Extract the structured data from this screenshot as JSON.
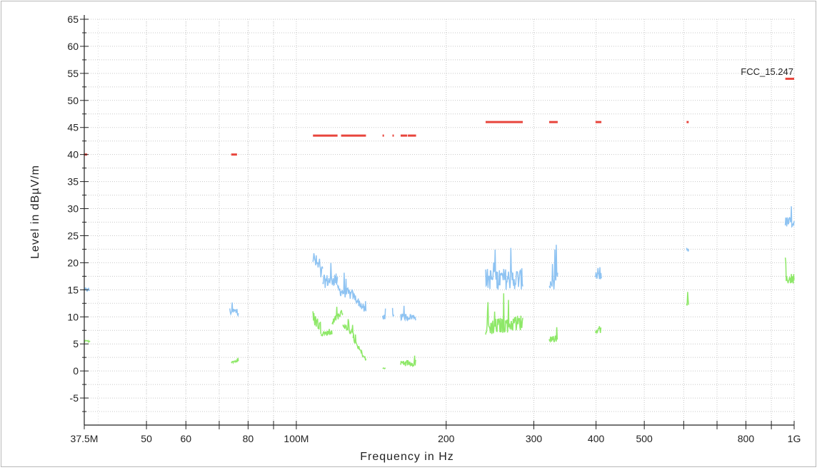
{
  "chart_data": {
    "type": "line",
    "xlabel": "Frequency in Hz",
    "ylabel": "Level in dBµV/m",
    "x_scale": "log",
    "xlim": [
      37500000,
      1000000000
    ],
    "ylim": [
      -10,
      65
    ],
    "grid": true,
    "x_ticks": [
      {
        "value": 37500000,
        "label": "37.5M"
      },
      {
        "value": 50000000,
        "label": "50"
      },
      {
        "value": 60000000,
        "label": "60"
      },
      {
        "value": 70000000,
        "label": ""
      },
      {
        "value": 80000000,
        "label": "80"
      },
      {
        "value": 90000000,
        "label": ""
      },
      {
        "value": 100000000,
        "label": "100M"
      },
      {
        "value": 200000000,
        "label": "200"
      },
      {
        "value": 300000000,
        "label": "300"
      },
      {
        "value": 400000000,
        "label": "400"
      },
      {
        "value": 500000000,
        "label": "500"
      },
      {
        "value": 600000000,
        "label": ""
      },
      {
        "value": 700000000,
        "label": ""
      },
      {
        "value": 800000000,
        "label": "800"
      },
      {
        "value": 900000000,
        "label": ""
      },
      {
        "value": 1000000000,
        "label": "1G"
      }
    ],
    "y_ticks": [
      -5,
      0,
      5,
      10,
      15,
      20,
      25,
      30,
      35,
      40,
      45,
      50,
      55,
      60,
      65
    ],
    "limit_label": "FCC_15.247",
    "series": [
      {
        "color": "#e8453c",
        "style": "segments",
        "segments": [
          {
            "x": [
              37500000,
              38000000
            ],
            "y": 40
          },
          {
            "x": [
              74000000,
              76000000
            ],
            "y": 40
          },
          {
            "x": [
              108000000,
              121000000
            ],
            "y": 43.5
          },
          {
            "x": [
              123000000,
              138000000
            ],
            "y": 43.5
          },
          {
            "x": [
              149000000,
              150000000
            ],
            "y": 43.5
          },
          {
            "x": [
              156000000,
              157000000
            ],
            "y": 43.5
          },
          {
            "x": [
              162000000,
              167000000
            ],
            "y": 43.5
          },
          {
            "x": [
              167500000,
              174000000
            ],
            "y": 43.5
          },
          {
            "x": [
              240000000,
              285000000
            ],
            "y": 46
          },
          {
            "x": [
              322000000,
              335000000
            ],
            "y": 46
          },
          {
            "x": [
              399000000,
              410000000
            ],
            "y": 46
          },
          {
            "x": [
              608000000,
              614000000
            ],
            "y": 46
          },
          {
            "x": [
              960000000,
              1000000000
            ],
            "y": 54
          }
        ]
      },
      {
        "color": "#8ec3f2",
        "style": "noise",
        "segments": [
          {
            "x": [
              37500000,
              38500000
            ],
            "y": [
              15,
              15
            ],
            "noise": 0.8
          },
          {
            "x": [
              73500000,
              76500000
            ],
            "y": [
              11,
              11
            ],
            "noise": 1.5
          },
          {
            "x": [
              108000000,
              113000000
            ],
            "y": [
              21,
              18
            ],
            "noise": 3
          },
          {
            "x": [
              113000000,
              121000000
            ],
            "y": [
              16.5,
              17
            ],
            "noise": 2.5
          },
          {
            "x": [
              121000000,
              130000000
            ],
            "y": [
              15,
              14
            ],
            "noise": 2
          },
          {
            "x": [
              130000000,
              138000000
            ],
            "y": [
              14,
              11
            ],
            "noise": 1.5
          },
          {
            "x": [
              149000000,
              151000000
            ],
            "y": [
              10,
              10
            ],
            "noise": 1
          },
          {
            "x": [
              156000000,
              157000000
            ],
            "y": [
              10,
              10
            ],
            "noise": 1
          },
          {
            "x": [
              162000000,
              174000000
            ],
            "y": [
              10,
              10
            ],
            "noise": 1.2
          },
          {
            "x": [
              240000000,
              285000000
            ],
            "y": [
              17,
              17
            ],
            "noise": 4
          },
          {
            "x": [
              322000000,
              335000000
            ],
            "y": [
              16,
              17
            ],
            "noise": 3
          },
          {
            "x": [
              399000000,
              410000000
            ],
            "y": [
              17.5,
              17.5
            ],
            "noise": 1.5
          },
          {
            "x": [
              608000000,
              614000000
            ],
            "y": [
              22.5,
              22.5
            ],
            "noise": 1
          },
          {
            "x": [
              960000000,
              1000000000
            ],
            "y": [
              27.5,
              27.5
            ],
            "noise": 2
          }
        ]
      },
      {
        "color": "#8ee868",
        "style": "noise",
        "segments": [
          {
            "x": [
              37500000,
              38500000
            ],
            "y": [
              5.5,
              5.5
            ],
            "noise": 0.3
          },
          {
            "x": [
              74000000,
              76500000
            ],
            "y": [
              1.8,
              1.8
            ],
            "noise": 0.6
          },
          {
            "x": [
              108000000,
              112000000
            ],
            "y": [
              10,
              8
            ],
            "noise": 2.5
          },
          {
            "x": [
              112000000,
              118000000
            ],
            "y": [
              7,
              7
            ],
            "noise": 1
          },
          {
            "x": [
              118000000,
              124000000
            ],
            "y": [
              9,
              11
            ],
            "noise": 1.2
          },
          {
            "x": [
              124000000,
              130000000
            ],
            "y": [
              8.5,
              7
            ],
            "noise": 1
          },
          {
            "x": [
              130000000,
              138000000
            ],
            "y": [
              6,
              2
            ],
            "noise": 0.8
          },
          {
            "x": [
              149000000,
              151000000
            ],
            "y": [
              0.5,
              0.5
            ],
            "noise": 0.2
          },
          {
            "x": [
              162000000,
              174000000
            ],
            "y": [
              1.5,
              1.5
            ],
            "noise": 1.2
          },
          {
            "x": [
              240000000,
              285000000
            ],
            "y": [
              8,
              9
            ],
            "noise": 3
          },
          {
            "x": [
              322000000,
              335000000
            ],
            "y": [
              6,
              6
            ],
            "noise": 1.2
          },
          {
            "x": [
              399000000,
              410000000
            ],
            "y": [
              7.5,
              7.5
            ],
            "noise": 1
          },
          {
            "x": [
              608000000,
              614000000
            ],
            "y": [
              12.5,
              12.5
            ],
            "noise": 1.2
          },
          {
            "x": [
              960000000,
              1000000000
            ],
            "y": [
              17,
              17
            ],
            "noise": 2
          }
        ]
      }
    ]
  }
}
